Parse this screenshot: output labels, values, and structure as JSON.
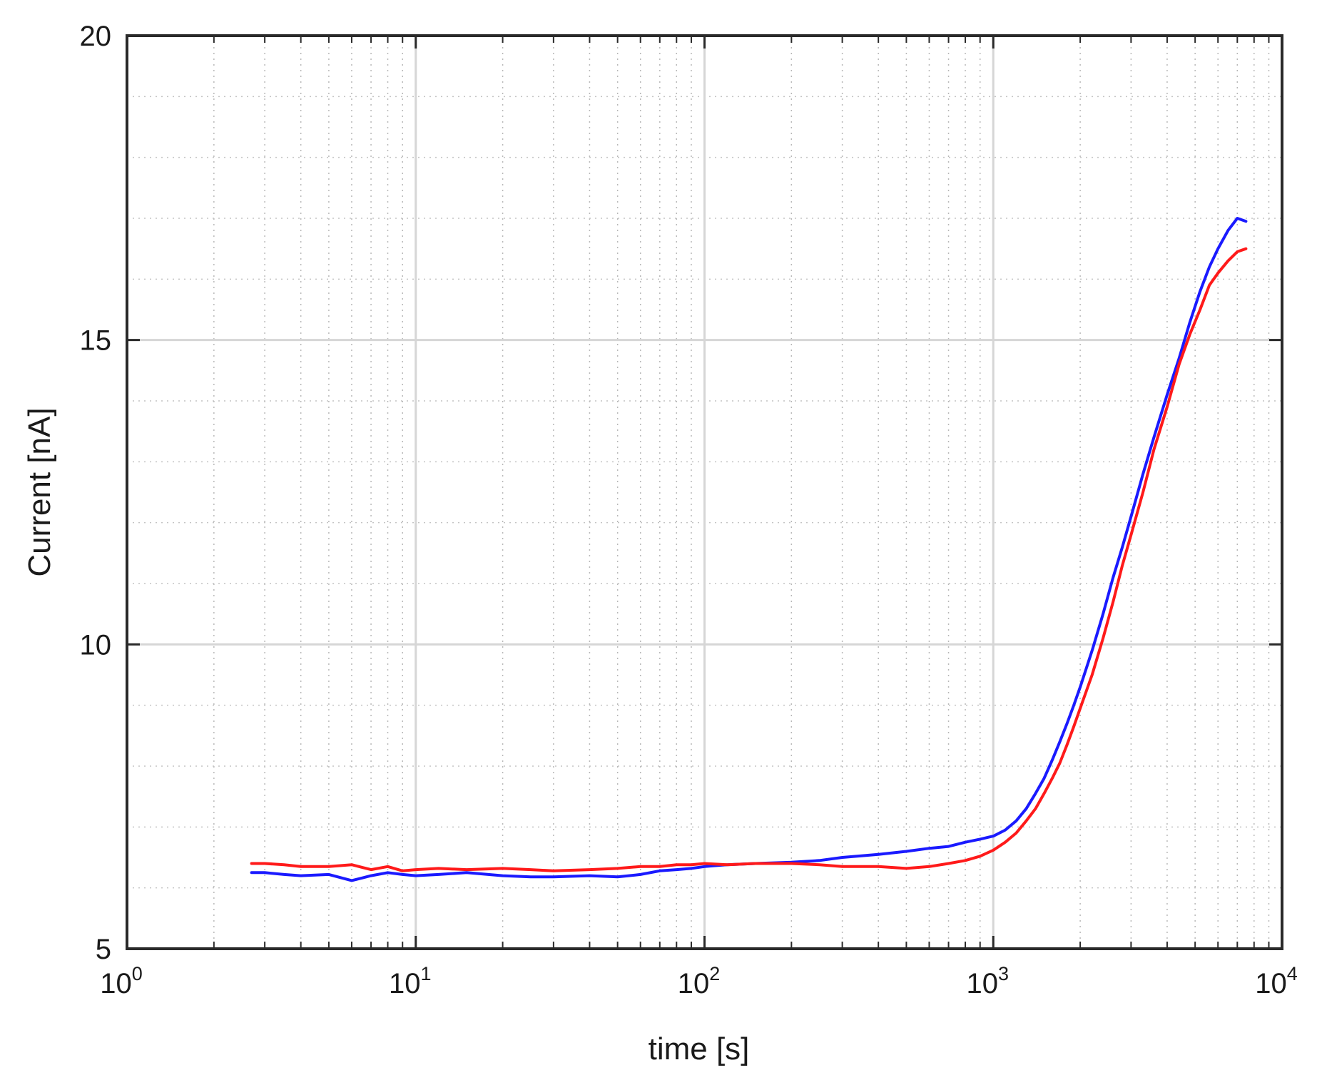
{
  "chart_data": {
    "type": "line",
    "title": "",
    "xlabel": "time [s]",
    "ylabel": "Current [nA]",
    "x_scale": "log",
    "xlim": [
      1,
      10000
    ],
    "ylim": [
      5,
      20
    ],
    "x_ticks": [
      {
        "value": 1,
        "base": "10",
        "exp": "0"
      },
      {
        "value": 10,
        "base": "10",
        "exp": "1"
      },
      {
        "value": 100,
        "base": "10",
        "exp": "2"
      },
      {
        "value": 1000,
        "base": "10",
        "exp": "3"
      },
      {
        "value": 10000,
        "base": "10",
        "exp": "4"
      }
    ],
    "y_ticks": [
      5,
      10,
      15,
      20
    ],
    "grid": "major solid, minor dotted",
    "legend": "none",
    "series": [
      {
        "color": "#1a1aff",
        "x": [
          2.7,
          3,
          3.5,
          4,
          5,
          6,
          7,
          8,
          9,
          10,
          12,
          15,
          20,
          25,
          30,
          40,
          50,
          60,
          70,
          80,
          90,
          100,
          120,
          150,
          200,
          250,
          300,
          400,
          500,
          600,
          700,
          800,
          900,
          1000,
          1100,
          1200,
          1300,
          1400,
          1500,
          1600,
          1700,
          1800,
          1900,
          2000,
          2200,
          2400,
          2600,
          2800,
          3000,
          3300,
          3600,
          4000,
          4400,
          4800,
          5200,
          5600,
          6000,
          6500,
          7000,
          7500
        ],
        "y": [
          6.25,
          6.25,
          6.22,
          6.2,
          6.22,
          6.12,
          6.2,
          6.25,
          6.22,
          6.2,
          6.22,
          6.25,
          6.2,
          6.18,
          6.18,
          6.2,
          6.18,
          6.22,
          6.28,
          6.3,
          6.32,
          6.35,
          6.38,
          6.4,
          6.42,
          6.45,
          6.5,
          6.55,
          6.6,
          6.65,
          6.68,
          6.75,
          6.8,
          6.85,
          6.95,
          7.1,
          7.3,
          7.55,
          7.8,
          8.1,
          8.4,
          8.7,
          9.0,
          9.3,
          9.9,
          10.5,
          11.1,
          11.6,
          12.1,
          12.8,
          13.4,
          14.1,
          14.7,
          15.3,
          15.8,
          16.2,
          16.5,
          16.8,
          17.0,
          16.95
        ]
      },
      {
        "color": "#ff1a1a",
        "x": [
          2.7,
          3,
          3.5,
          4,
          5,
          6,
          7,
          8,
          9,
          10,
          12,
          15,
          20,
          25,
          30,
          40,
          50,
          60,
          70,
          80,
          90,
          100,
          120,
          150,
          200,
          250,
          300,
          400,
          500,
          600,
          700,
          800,
          900,
          1000,
          1100,
          1200,
          1300,
          1400,
          1500,
          1600,
          1700,
          1800,
          1900,
          2000,
          2200,
          2400,
          2600,
          2800,
          3000,
          3300,
          3600,
          4000,
          4400,
          4800,
          5200,
          5600,
          6000,
          6500,
          7000,
          7500
        ],
        "y": [
          6.4,
          6.4,
          6.38,
          6.35,
          6.35,
          6.38,
          6.3,
          6.35,
          6.28,
          6.3,
          6.32,
          6.3,
          6.32,
          6.3,
          6.28,
          6.3,
          6.32,
          6.35,
          6.35,
          6.38,
          6.38,
          6.4,
          6.38,
          6.4,
          6.4,
          6.38,
          6.35,
          6.35,
          6.32,
          6.35,
          6.4,
          6.45,
          6.52,
          6.62,
          6.75,
          6.9,
          7.1,
          7.3,
          7.55,
          7.8,
          8.05,
          8.35,
          8.65,
          8.95,
          9.5,
          10.1,
          10.7,
          11.3,
          11.8,
          12.5,
          13.2,
          13.9,
          14.6,
          15.1,
          15.5,
          15.9,
          16.1,
          16.3,
          16.45,
          16.5
        ]
      }
    ]
  }
}
